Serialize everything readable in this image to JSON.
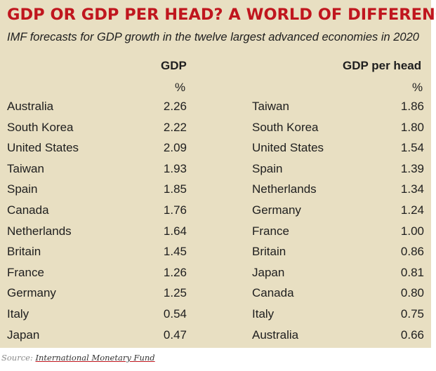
{
  "chart_data": {
    "type": "table",
    "title": "GDP OR GDP PER HEAD? A WORLD OF DIFFERENCE",
    "subtitle": "IMF forecasts for GDP growth in the twelve largest advanced economies in 2020",
    "columns": [
      {
        "header": "GDP",
        "unit": "%",
        "rows": [
          {
            "country": "Australia",
            "value": "2.26"
          },
          {
            "country": "South Korea",
            "value": "2.22"
          },
          {
            "country": "United States",
            "value": "2.09"
          },
          {
            "country": "Taiwan",
            "value": "1.93"
          },
          {
            "country": "Spain",
            "value": "1.85"
          },
          {
            "country": "Canada",
            "value": "1.76"
          },
          {
            "country": "Netherlands",
            "value": "1.64"
          },
          {
            "country": "Britain",
            "value": "1.45"
          },
          {
            "country": "France",
            "value": "1.26"
          },
          {
            "country": "Germany",
            "value": "1.25"
          },
          {
            "country": "Italy",
            "value": "0.54"
          },
          {
            "country": "Japan",
            "value": "0.47"
          }
        ]
      },
      {
        "header": "GDP per head",
        "unit": "%",
        "rows": [
          {
            "country": "Taiwan",
            "value": "1.86"
          },
          {
            "country": "South Korea",
            "value": "1.80"
          },
          {
            "country": "United States",
            "value": "1.54"
          },
          {
            "country": "Spain",
            "value": "1.39"
          },
          {
            "country": "Netherlands",
            "value": "1.34"
          },
          {
            "country": "Germany",
            "value": "1.24"
          },
          {
            "country": "France",
            "value": "1.00"
          },
          {
            "country": "Britain",
            "value": "0.86"
          },
          {
            "country": "Japan",
            "value": "0.81"
          },
          {
            "country": "Canada",
            "value": "0.80"
          },
          {
            "country": "Italy",
            "value": "0.75"
          },
          {
            "country": "Australia",
            "value": "0.66"
          }
        ]
      }
    ],
    "source_label": "Source:",
    "source_name": "International Monetary Fund"
  },
  "colors": {
    "title": "#c0161e",
    "background": "#e8dfc2",
    "text": "#1e1e1e"
  }
}
